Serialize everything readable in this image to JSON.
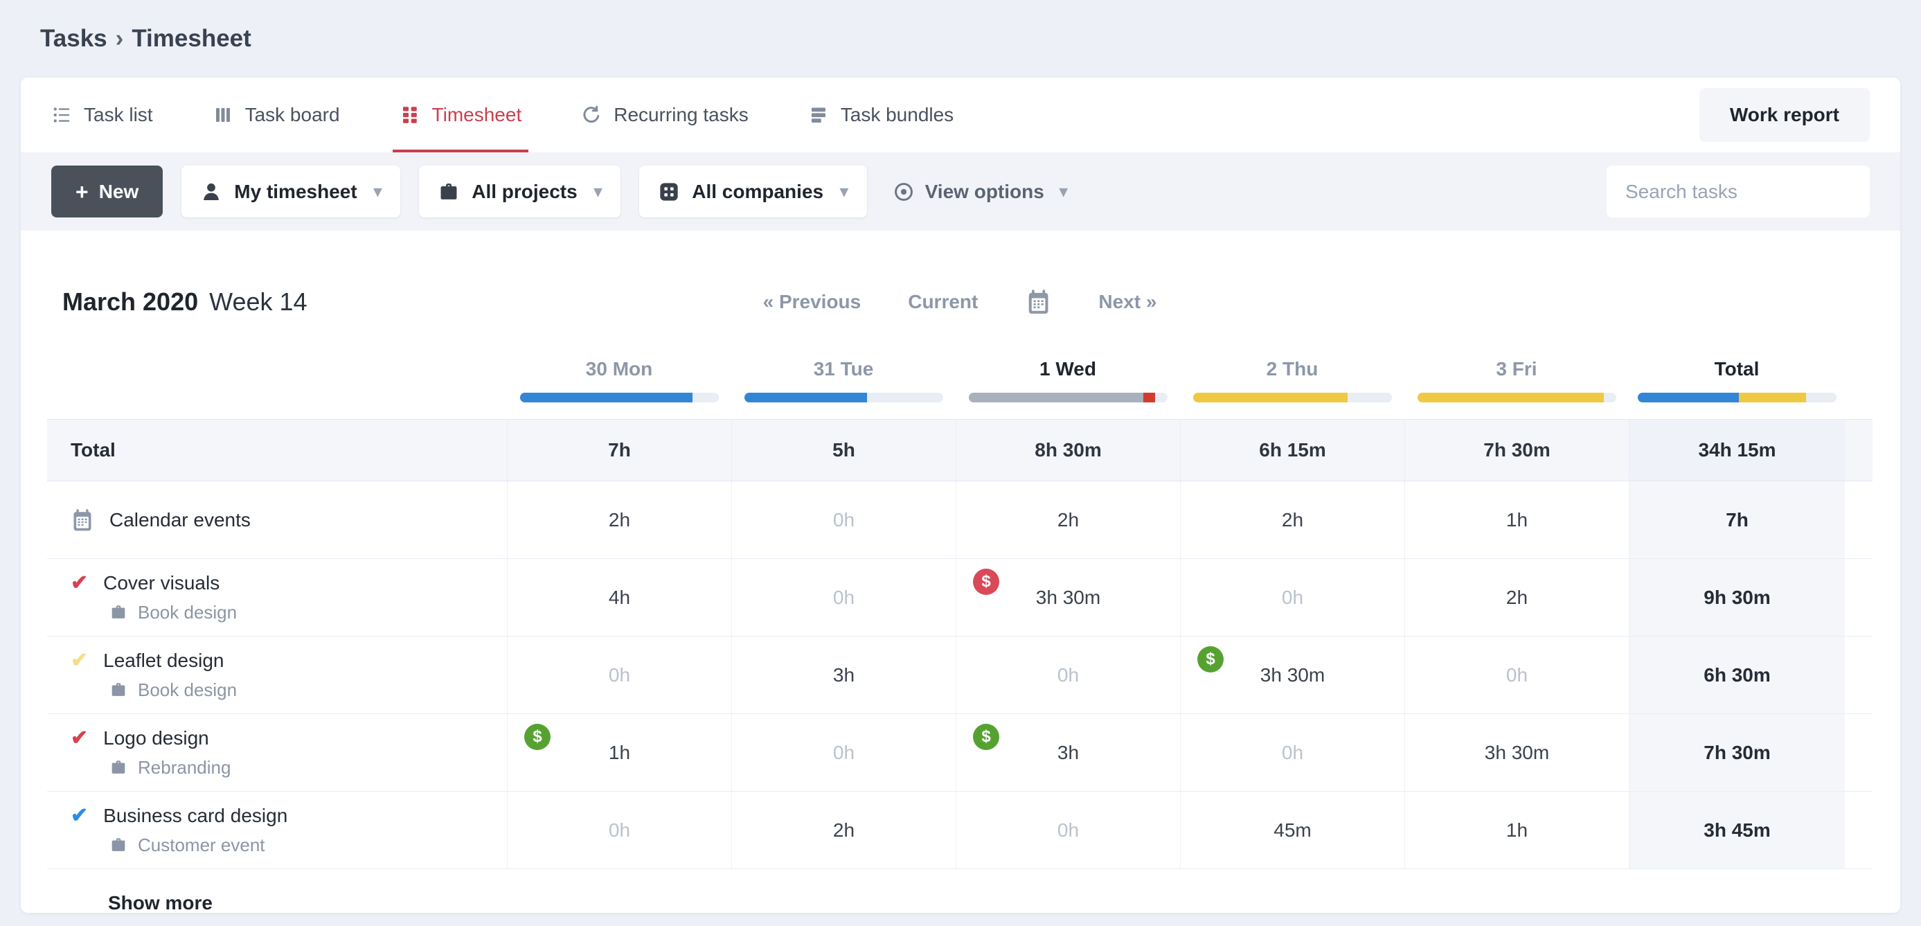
{
  "breadcrumb": {
    "parent": "Tasks",
    "separator": "›",
    "current": "Timesheet"
  },
  "tabs": [
    {
      "id": "task-list",
      "label": "Task list",
      "icon": "list-icon",
      "active": false
    },
    {
      "id": "task-board",
      "label": "Task board",
      "icon": "board-icon",
      "active": false
    },
    {
      "id": "timesheet",
      "label": "Timesheet",
      "icon": "grid-icon",
      "active": true
    },
    {
      "id": "recurring-tasks",
      "label": "Recurring tasks",
      "icon": "recurring-icon",
      "active": false
    },
    {
      "id": "task-bundles",
      "label": "Task bundles",
      "icon": "bundles-icon",
      "active": false
    }
  ],
  "work_report": {
    "label": "Work report"
  },
  "toolbar": {
    "new_plus": "+",
    "new_label": "New",
    "filters": [
      {
        "id": "assignee",
        "label": "My timesheet",
        "icon": "user-icon"
      },
      {
        "id": "projects",
        "label": "All projects",
        "icon": "briefcase-icon"
      },
      {
        "id": "companies",
        "label": "All companies",
        "icon": "company-icon"
      }
    ],
    "view_options_label": "View options",
    "search_placeholder": "Search tasks"
  },
  "period": {
    "title": "March 2020",
    "subtitle": "Week 14"
  },
  "nav": {
    "previous": "« Previous",
    "current": "Current",
    "next": "Next »"
  },
  "colors": {
    "blue": "#3385d6",
    "yellow": "#f0c943",
    "gray": "#a9b1be",
    "red": "#d23b2e",
    "badge_green": "#56a231",
    "badge_red": "#d8495a",
    "accent": "#ca3f4e",
    "check_red": "#d8414f",
    "check_yellow": "#f6dd8b",
    "check_blue": "#2d8ce3"
  },
  "timesheet": {
    "columns": [
      {
        "label": "30 Mon",
        "today": false,
        "bar": [
          {
            "color": "blue",
            "pct": 87
          }
        ]
      },
      {
        "label": "31 Tue",
        "today": false,
        "bar": [
          {
            "color": "blue",
            "pct": 62
          }
        ]
      },
      {
        "label": "1 Wed",
        "today": true,
        "bar": [
          {
            "color": "gray",
            "pct": 88
          },
          {
            "color": "red",
            "pct": 6
          }
        ]
      },
      {
        "label": "2 Thu",
        "today": false,
        "bar": [
          {
            "color": "yellow",
            "pct": 78
          }
        ]
      },
      {
        "label": "3 Fri",
        "today": false,
        "bar": [
          {
            "color": "yellow",
            "pct": 94
          }
        ]
      },
      {
        "label": "Total",
        "today": true,
        "bar": [
          {
            "color": "blue",
            "pct": 51
          },
          {
            "color": "yellow",
            "pct": 34
          }
        ]
      }
    ],
    "total_row": {
      "label": "Total",
      "values": [
        "7h",
        "5h",
        "8h 30m",
        "6h 15m",
        "7h 30m"
      ],
      "total": "34h 15m"
    },
    "rows": [
      {
        "task": "Calendar events",
        "type": "calendar",
        "check": null,
        "project": null,
        "cells": [
          {
            "text": "2h"
          },
          {
            "text": "0h",
            "muted": true
          },
          {
            "text": "2h"
          },
          {
            "text": "2h"
          },
          {
            "text": "1h"
          }
        ],
        "total": "7h"
      },
      {
        "task": "Cover visuals",
        "type": "task",
        "check": "red",
        "project": "Book design",
        "cells": [
          {
            "text": "4h"
          },
          {
            "text": "0h",
            "muted": true
          },
          {
            "text": "3h 30m",
            "badge": "red"
          },
          {
            "text": "0h",
            "muted": true
          },
          {
            "text": "2h"
          }
        ],
        "total": "9h 30m"
      },
      {
        "task": "Leaflet design",
        "type": "task",
        "check": "yellow",
        "project": "Book design",
        "cells": [
          {
            "text": "0h",
            "muted": true
          },
          {
            "text": "3h"
          },
          {
            "text": "0h",
            "muted": true
          },
          {
            "text": "3h 30m",
            "badge": "green"
          },
          {
            "text": "0h",
            "muted": true
          }
        ],
        "total": "6h 30m"
      },
      {
        "task": "Logo design",
        "type": "task",
        "check": "red",
        "project": "Rebranding",
        "cells": [
          {
            "text": "1h",
            "badge": "green"
          },
          {
            "text": "0h",
            "muted": true
          },
          {
            "text": "3h",
            "badge": "green"
          },
          {
            "text": "0h",
            "muted": true
          },
          {
            "text": "3h 30m"
          }
        ],
        "total": "7h 30m"
      },
      {
        "task": "Business card design",
        "type": "task",
        "check": "blue",
        "project": "Customer event",
        "cells": [
          {
            "text": "0h",
            "muted": true
          },
          {
            "text": "2h"
          },
          {
            "text": "0h",
            "muted": true
          },
          {
            "text": "45m"
          },
          {
            "text": "1h"
          }
        ],
        "total": "3h 45m"
      }
    ],
    "show_more": "Show more",
    "badge_symbol": "$",
    "check_symbol": "✔"
  }
}
